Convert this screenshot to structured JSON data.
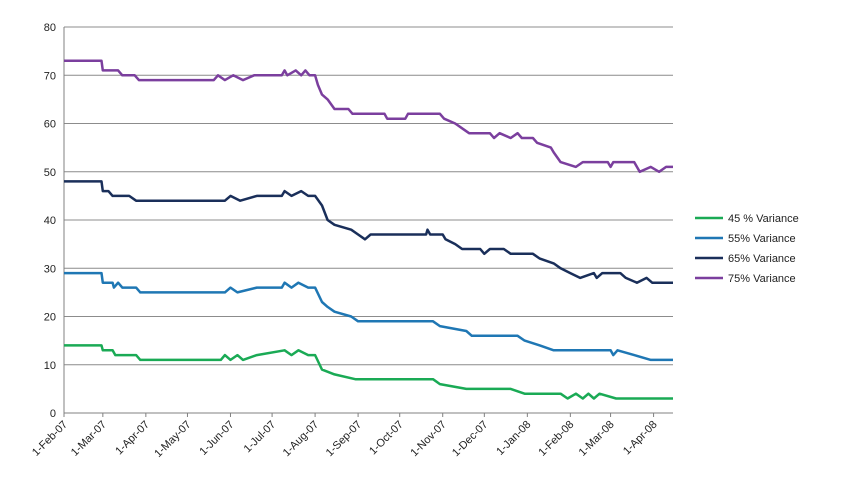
{
  "chart_data": {
    "type": "line",
    "title": "",
    "xlabel": "",
    "ylabel": "",
    "ylim": [
      0,
      80
    ],
    "yticks": [
      0,
      10,
      20,
      30,
      40,
      50,
      60,
      70,
      80
    ],
    "xlim": [
      "2007-02-01",
      "2008-04-15"
    ],
    "xticks": [
      "2007-02-01",
      "2007-03-01",
      "2007-04-01",
      "2007-05-01",
      "2007-06-01",
      "2007-07-01",
      "2007-08-01",
      "2007-09-01",
      "2007-10-01",
      "2007-11-01",
      "2007-12-01",
      "2008-01-01",
      "2008-02-01",
      "2008-03-01",
      "2008-04-01"
    ],
    "xtick_labels": [
      "1-Feb-07",
      "1-Mar-07",
      "1-Apr-07",
      "1-May-07",
      "1-Jun-07",
      "1-Jul-07",
      "1-Aug-07",
      "1-Sep-07",
      "1-Oct-07",
      "1-Nov-07",
      "1-Dec-07",
      "1-Jan-08",
      "1-Feb-08",
      "1-Mar-08",
      "1-Apr-08"
    ],
    "grid": "horizontal",
    "legend_position": "right",
    "series": [
      {
        "name": "45 % Variance",
        "color": "#1aaa55",
        "points": [
          [
            "2007-02-01",
            14
          ],
          [
            "2007-02-28",
            14
          ],
          [
            "2007-03-01",
            13
          ],
          [
            "2007-03-08",
            13
          ],
          [
            "2007-03-10",
            12
          ],
          [
            "2007-03-25",
            12
          ],
          [
            "2007-03-28",
            11
          ],
          [
            "2007-05-25",
            11
          ],
          [
            "2007-05-28",
            12
          ],
          [
            "2007-06-01",
            11
          ],
          [
            "2007-06-06",
            12
          ],
          [
            "2007-06-10",
            11
          ],
          [
            "2007-06-20",
            12
          ],
          [
            "2007-07-10",
            13
          ],
          [
            "2007-07-15",
            12
          ],
          [
            "2007-07-20",
            13
          ],
          [
            "2007-07-27",
            12
          ],
          [
            "2007-08-01",
            12
          ],
          [
            "2007-08-06",
            9
          ],
          [
            "2007-08-15",
            8
          ],
          [
            "2007-08-30",
            7
          ],
          [
            "2007-10-25",
            7
          ],
          [
            "2007-10-30",
            6
          ],
          [
            "2007-11-18",
            5
          ],
          [
            "2007-12-20",
            5
          ],
          [
            "2007-12-30",
            4
          ],
          [
            "2008-01-25",
            4
          ],
          [
            "2008-01-30",
            3
          ],
          [
            "2008-02-05",
            4
          ],
          [
            "2008-02-10",
            3
          ],
          [
            "2008-02-14",
            4
          ],
          [
            "2008-02-18",
            3
          ],
          [
            "2008-02-22",
            4
          ],
          [
            "2008-03-05",
            3
          ],
          [
            "2008-04-15",
            3
          ]
        ]
      },
      {
        "name": "55% Variance",
        "color": "#1f77b4",
        "points": [
          [
            "2007-02-01",
            29
          ],
          [
            "2007-02-28",
            29
          ],
          [
            "2007-03-01",
            27
          ],
          [
            "2007-03-08",
            27
          ],
          [
            "2007-03-09",
            26
          ],
          [
            "2007-03-12",
            27
          ],
          [
            "2007-03-15",
            26
          ],
          [
            "2007-03-25",
            26
          ],
          [
            "2007-03-28",
            25
          ],
          [
            "2007-05-28",
            25
          ],
          [
            "2007-06-01",
            26
          ],
          [
            "2007-06-06",
            25
          ],
          [
            "2007-06-20",
            26
          ],
          [
            "2007-07-08",
            26
          ],
          [
            "2007-07-10",
            27
          ],
          [
            "2007-07-15",
            26
          ],
          [
            "2007-07-20",
            27
          ],
          [
            "2007-07-27",
            26
          ],
          [
            "2007-08-01",
            26
          ],
          [
            "2007-08-06",
            23
          ],
          [
            "2007-08-10",
            22
          ],
          [
            "2007-08-15",
            21
          ],
          [
            "2007-08-27",
            20
          ],
          [
            "2007-09-01",
            19
          ],
          [
            "2007-10-25",
            19
          ],
          [
            "2007-10-30",
            18
          ],
          [
            "2007-11-18",
            17
          ],
          [
            "2007-11-22",
            16
          ],
          [
            "2007-12-25",
            16
          ],
          [
            "2007-12-30",
            15
          ],
          [
            "2008-01-10",
            14
          ],
          [
            "2008-01-20",
            13
          ],
          [
            "2008-03-01",
            13
          ],
          [
            "2008-03-03",
            12
          ],
          [
            "2008-03-06",
            13
          ],
          [
            "2008-03-18",
            12
          ],
          [
            "2008-03-30",
            11
          ],
          [
            "2008-04-15",
            11
          ]
        ]
      },
      {
        "name": "65% Variance",
        "color": "#1a2f5a",
        "points": [
          [
            "2007-02-01",
            48
          ],
          [
            "2007-02-28",
            48
          ],
          [
            "2007-03-01",
            46
          ],
          [
            "2007-03-05",
            46
          ],
          [
            "2007-03-08",
            45
          ],
          [
            "2007-03-20",
            45
          ],
          [
            "2007-03-25",
            44
          ],
          [
            "2007-05-28",
            44
          ],
          [
            "2007-06-01",
            45
          ],
          [
            "2007-06-08",
            44
          ],
          [
            "2007-06-20",
            45
          ],
          [
            "2007-07-08",
            45
          ],
          [
            "2007-07-10",
            46
          ],
          [
            "2007-07-15",
            45
          ],
          [
            "2007-07-22",
            46
          ],
          [
            "2007-07-27",
            45
          ],
          [
            "2007-08-01",
            45
          ],
          [
            "2007-08-06",
            43
          ],
          [
            "2007-08-10",
            40
          ],
          [
            "2007-08-15",
            39
          ],
          [
            "2007-08-27",
            38
          ],
          [
            "2007-09-01",
            37
          ],
          [
            "2007-09-06",
            36
          ],
          [
            "2007-09-10",
            37
          ],
          [
            "2007-10-20",
            37
          ],
          [
            "2007-10-21",
            38
          ],
          [
            "2007-10-23",
            37
          ],
          [
            "2007-11-01",
            37
          ],
          [
            "2007-11-03",
            36
          ],
          [
            "2007-11-10",
            35
          ],
          [
            "2007-11-15",
            34
          ],
          [
            "2007-11-28",
            34
          ],
          [
            "2007-12-01",
            33
          ],
          [
            "2007-12-05",
            34
          ],
          [
            "2007-12-15",
            34
          ],
          [
            "2007-12-20",
            33
          ],
          [
            "2008-01-05",
            33
          ],
          [
            "2008-01-10",
            32
          ],
          [
            "2008-01-20",
            31
          ],
          [
            "2008-01-25",
            30
          ],
          [
            "2008-02-01",
            29
          ],
          [
            "2008-02-08",
            28
          ],
          [
            "2008-02-18",
            29
          ],
          [
            "2008-02-20",
            28
          ],
          [
            "2008-02-24",
            29
          ],
          [
            "2008-03-08",
            29
          ],
          [
            "2008-03-12",
            28
          ],
          [
            "2008-03-20",
            27
          ],
          [
            "2008-03-27",
            28
          ],
          [
            "2008-03-31",
            27
          ],
          [
            "2008-04-15",
            27
          ]
        ]
      },
      {
        "name": "75% Variance",
        "color": "#7b3f9e",
        "points": [
          [
            "2007-02-01",
            73
          ],
          [
            "2007-02-28",
            73
          ],
          [
            "2007-03-01",
            71
          ],
          [
            "2007-03-12",
            71
          ],
          [
            "2007-03-15",
            70
          ],
          [
            "2007-03-24",
            70
          ],
          [
            "2007-03-27",
            69
          ],
          [
            "2007-05-20",
            69
          ],
          [
            "2007-05-23",
            70
          ],
          [
            "2007-05-28",
            69
          ],
          [
            "2007-06-03",
            70
          ],
          [
            "2007-06-10",
            69
          ],
          [
            "2007-06-18",
            70
          ],
          [
            "2007-07-08",
            70
          ],
          [
            "2007-07-10",
            71
          ],
          [
            "2007-07-12",
            70
          ],
          [
            "2007-07-18",
            71
          ],
          [
            "2007-07-22",
            70
          ],
          [
            "2007-07-25",
            71
          ],
          [
            "2007-07-28",
            70
          ],
          [
            "2007-08-01",
            70
          ],
          [
            "2007-08-03",
            68
          ],
          [
            "2007-08-06",
            66
          ],
          [
            "2007-08-10",
            65
          ],
          [
            "2007-08-15",
            63
          ],
          [
            "2007-08-25",
            63
          ],
          [
            "2007-08-28",
            62
          ],
          [
            "2007-09-20",
            62
          ],
          [
            "2007-09-22",
            61
          ],
          [
            "2007-10-05",
            61
          ],
          [
            "2007-10-07",
            62
          ],
          [
            "2007-10-30",
            62
          ],
          [
            "2007-11-02",
            61
          ],
          [
            "2007-11-10",
            60
          ],
          [
            "2007-11-15",
            59
          ],
          [
            "2007-11-20",
            58
          ],
          [
            "2007-12-05",
            58
          ],
          [
            "2007-12-08",
            57
          ],
          [
            "2007-12-12",
            58
          ],
          [
            "2007-12-20",
            57
          ],
          [
            "2007-12-25",
            58
          ],
          [
            "2007-12-28",
            57
          ],
          [
            "2008-01-05",
            57
          ],
          [
            "2008-01-08",
            56
          ],
          [
            "2008-01-18",
            55
          ],
          [
            "2008-01-20",
            54
          ],
          [
            "2008-01-25",
            52
          ],
          [
            "2008-02-05",
            51
          ],
          [
            "2008-02-10",
            52
          ],
          [
            "2008-02-28",
            52
          ],
          [
            "2008-03-01",
            51
          ],
          [
            "2008-03-03",
            52
          ],
          [
            "2008-03-18",
            52
          ],
          [
            "2008-03-22",
            50
          ],
          [
            "2008-03-30",
            51
          ],
          [
            "2008-04-05",
            50
          ],
          [
            "2008-04-10",
            51
          ],
          [
            "2008-04-15",
            51
          ]
        ]
      }
    ]
  }
}
